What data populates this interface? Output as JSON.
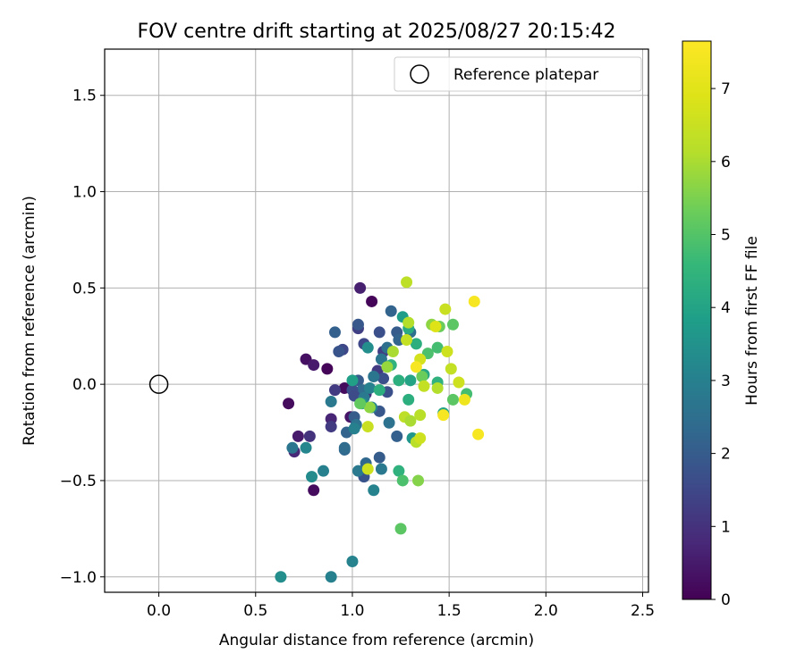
{
  "chart_data": {
    "type": "scatter",
    "title": "FOV centre drift starting at 2025/08/27 20:15:42",
    "xlabel": "Angular distance from reference (arcmin)",
    "ylabel": "Rotation from reference (arcmin)",
    "xlim": [
      -0.28,
      2.53
    ],
    "ylim": [
      -1.08,
      1.74
    ],
    "x_ticks": [
      0.0,
      0.5,
      1.0,
      1.5,
      2.0,
      2.5
    ],
    "x_tick_labels": [
      "0.0",
      "0.5",
      "1.0",
      "1.5",
      "2.0",
      "2.5"
    ],
    "y_ticks": [
      -1.0,
      -0.5,
      0.0,
      0.5,
      1.0,
      1.5
    ],
    "y_tick_labels": [
      "−1.0",
      "−0.5",
      "0.0",
      "0.5",
      "1.0",
      "1.5"
    ],
    "grid": true,
    "legend": {
      "placement": "top-right",
      "label": "Reference platepar"
    },
    "reference_point": {
      "x": 0.0,
      "y": 0.0
    },
    "colorbar": {
      "label": "Hours from first FF file",
      "colormap": "viridis",
      "range": [
        0,
        7.65
      ],
      "ticks": [
        0,
        1,
        2,
        3,
        4,
        5,
        6,
        7
      ],
      "tick_labels": [
        "0",
        "1",
        "2",
        "3",
        "4",
        "5",
        "6",
        "7"
      ]
    },
    "points": [
      {
        "x": 1.1,
        "y": 0.43,
        "t": 0.1
      },
      {
        "x": 1.04,
        "y": 0.5,
        "t": 0.6
      },
      {
        "x": 0.76,
        "y": 0.13,
        "t": 0.3
      },
      {
        "x": 0.8,
        "y": 0.1,
        "t": 0.5
      },
      {
        "x": 0.87,
        "y": 0.08,
        "t": 0.1
      },
      {
        "x": 0.67,
        "y": -0.1,
        "t": 0.2
      },
      {
        "x": 0.72,
        "y": -0.27,
        "t": 0.5
      },
      {
        "x": 0.8,
        "y": -0.55,
        "t": 0.2
      },
      {
        "x": 0.96,
        "y": -0.02,
        "t": 0.2
      },
      {
        "x": 0.7,
        "y": -0.35,
        "t": 0.8
      },
      {
        "x": 0.78,
        "y": -0.27,
        "t": 1.0
      },
      {
        "x": 0.89,
        "y": -0.18,
        "t": 0.7
      },
      {
        "x": 0.99,
        "y": -0.17,
        "t": 0.4
      },
      {
        "x": 0.89,
        "y": -0.22,
        "t": 1.2
      },
      {
        "x": 0.91,
        "y": -0.03,
        "t": 1.2
      },
      {
        "x": 0.95,
        "y": 0.18,
        "t": 1.5
      },
      {
        "x": 0.93,
        "y": 0.17,
        "t": 1.8
      },
      {
        "x": 0.91,
        "y": 0.27,
        "t": 2.1
      },
      {
        "x": 1.03,
        "y": 0.29,
        "t": 1.3
      },
      {
        "x": 1.03,
        "y": 0.31,
        "t": 1.9
      },
      {
        "x": 1.06,
        "y": 0.21,
        "t": 1.5
      },
      {
        "x": 1.07,
        "y": -0.05,
        "t": 1.0
      },
      {
        "x": 1.13,
        "y": 0.07,
        "t": 1.2
      },
      {
        "x": 1.16,
        "y": 0.17,
        "t": 1.3
      },
      {
        "x": 1.14,
        "y": 0.27,
        "t": 1.7
      },
      {
        "x": 1.16,
        "y": 0.03,
        "t": 1.7
      },
      {
        "x": 1.03,
        "y": 0.02,
        "t": 2.0
      },
      {
        "x": 1.05,
        "y": -0.03,
        "t": 2.4
      },
      {
        "x": 1.0,
        "y": -0.03,
        "t": 1.7
      },
      {
        "x": 1.01,
        "y": -0.06,
        "t": 1.6
      },
      {
        "x": 1.01,
        "y": -0.17,
        "t": 2.0
      },
      {
        "x": 0.97,
        "y": -0.25,
        "t": 2.2
      },
      {
        "x": 0.96,
        "y": -0.34,
        "t": 2.3
      },
      {
        "x": 1.06,
        "y": -0.48,
        "t": 1.8
      },
      {
        "x": 1.07,
        "y": -0.41,
        "t": 2.3
      },
      {
        "x": 1.14,
        "y": -0.38,
        "t": 2.0
      },
      {
        "x": 1.14,
        "y": -0.14,
        "t": 1.9
      },
      {
        "x": 1.18,
        "y": -0.04,
        "t": 1.7
      },
      {
        "x": 1.23,
        "y": -0.27,
        "t": 2.1
      },
      {
        "x": 1.19,
        "y": -0.2,
        "t": 2.6
      },
      {
        "x": 1.2,
        "y": 0.38,
        "t": 2.2
      },
      {
        "x": 1.23,
        "y": 0.27,
        "t": 2.0
      },
      {
        "x": 1.24,
        "y": 0.23,
        "t": 2.2
      },
      {
        "x": 1.3,
        "y": 0.27,
        "t": 2.5
      },
      {
        "x": 1.26,
        "y": 0.35,
        "t": 3.8
      },
      {
        "x": 1.18,
        "y": 0.19,
        "t": 2.5
      },
      {
        "x": 1.15,
        "y": 0.13,
        "t": 2.7
      },
      {
        "x": 1.08,
        "y": 0.19,
        "t": 3.4
      },
      {
        "x": 1.11,
        "y": 0.04,
        "t": 2.7
      },
      {
        "x": 1.09,
        "y": -0.02,
        "t": 3.0
      },
      {
        "x": 1.06,
        "y": -0.07,
        "t": 2.8
      },
      {
        "x": 1.1,
        "y": -0.12,
        "t": 3.1
      },
      {
        "x": 1.05,
        "y": -0.1,
        "t": 3.6
      },
      {
        "x": 1.02,
        "y": -0.21,
        "t": 2.6
      },
      {
        "x": 1.01,
        "y": -0.23,
        "t": 3.0
      },
      {
        "x": 0.96,
        "y": -0.33,
        "t": 2.4
      },
      {
        "x": 1.03,
        "y": -0.45,
        "t": 2.8
      },
      {
        "x": 1.11,
        "y": -0.55,
        "t": 3.1
      },
      {
        "x": 1.15,
        "y": -0.44,
        "t": 2.8
      },
      {
        "x": 0.89,
        "y": -0.09,
        "t": 2.8
      },
      {
        "x": 0.85,
        "y": -0.45,
        "t": 3.0
      },
      {
        "x": 0.79,
        "y": -0.48,
        "t": 3.3
      },
      {
        "x": 0.76,
        "y": -0.33,
        "t": 3.2
      },
      {
        "x": 0.69,
        "y": -0.33,
        "t": 2.7
      },
      {
        "x": 0.63,
        "y": -1.0,
        "t": 3.4
      },
      {
        "x": 0.89,
        "y": -1.0,
        "t": 3.0
      },
      {
        "x": 1.0,
        "y": -0.92,
        "t": 3.1
      },
      {
        "x": 1.0,
        "y": 0.02,
        "t": 3.9
      },
      {
        "x": 1.14,
        "y": -0.03,
        "t": 4.3
      },
      {
        "x": 1.2,
        "y": 0.1,
        "t": 4.4
      },
      {
        "x": 1.24,
        "y": 0.02,
        "t": 4.3
      },
      {
        "x": 1.3,
        "y": 0.02,
        "t": 4.0
      },
      {
        "x": 1.29,
        "y": -0.08,
        "t": 4.3
      },
      {
        "x": 1.31,
        "y": -0.28,
        "t": 3.6
      },
      {
        "x": 1.24,
        "y": -0.45,
        "t": 4.4
      },
      {
        "x": 1.26,
        "y": -0.5,
        "t": 4.9
      },
      {
        "x": 1.25,
        "y": -0.75,
        "t": 5.1
      },
      {
        "x": 1.29,
        "y": 0.29,
        "t": 4.2
      },
      {
        "x": 1.33,
        "y": 0.21,
        "t": 4.3
      },
      {
        "x": 1.37,
        "y": 0.05,
        "t": 4.1
      },
      {
        "x": 1.39,
        "y": 0.16,
        "t": 4.9
      },
      {
        "x": 1.44,
        "y": 0.19,
        "t": 4.8
      },
      {
        "x": 1.45,
        "y": 0.3,
        "t": 5.3
      },
      {
        "x": 1.52,
        "y": 0.31,
        "t": 5.1
      },
      {
        "x": 1.44,
        "y": 0.01,
        "t": 4.4
      },
      {
        "x": 1.47,
        "y": -0.15,
        "t": 4.0
      },
      {
        "x": 1.52,
        "y": -0.08,
        "t": 5.1
      },
      {
        "x": 1.59,
        "y": -0.05,
        "t": 4.8
      },
      {
        "x": 1.41,
        "y": 0.31,
        "t": 5.7
      },
      {
        "x": 1.36,
        "y": 0.04,
        "t": 5.3
      },
      {
        "x": 1.29,
        "y": 0.32,
        "t": 6.1
      },
      {
        "x": 1.28,
        "y": 0.53,
        "t": 6.3
      },
      {
        "x": 1.28,
        "y": 0.23,
        "t": 6.4
      },
      {
        "x": 1.21,
        "y": 0.17,
        "t": 6.0
      },
      {
        "x": 1.18,
        "y": 0.09,
        "t": 5.8
      },
      {
        "x": 1.37,
        "y": -0.01,
        "t": 6.4
      },
      {
        "x": 1.44,
        "y": -0.02,
        "t": 6.1
      },
      {
        "x": 1.51,
        "y": 0.08,
        "t": 6.4
      },
      {
        "x": 1.55,
        "y": 0.01,
        "t": 6.6
      },
      {
        "x": 1.49,
        "y": 0.17,
        "t": 6.6
      },
      {
        "x": 1.48,
        "y": 0.39,
        "t": 6.5
      },
      {
        "x": 1.43,
        "y": 0.3,
        "t": 6.9
      },
      {
        "x": 1.35,
        "y": 0.13,
        "t": 6.7
      },
      {
        "x": 1.33,
        "y": 0.09,
        "t": 7.5
      },
      {
        "x": 1.27,
        "y": -0.17,
        "t": 6.3
      },
      {
        "x": 1.3,
        "y": -0.19,
        "t": 6.0
      },
      {
        "x": 1.33,
        "y": -0.3,
        "t": 6.2
      },
      {
        "x": 1.35,
        "y": -0.28,
        "t": 6.6
      },
      {
        "x": 1.35,
        "y": -0.16,
        "t": 6.2
      },
      {
        "x": 1.47,
        "y": -0.16,
        "t": 7.5
      },
      {
        "x": 1.58,
        "y": -0.08,
        "t": 7.3
      },
      {
        "x": 1.63,
        "y": 0.43,
        "t": 7.5
      },
      {
        "x": 1.65,
        "y": -0.26,
        "t": 7.5
      },
      {
        "x": 1.34,
        "y": -0.5,
        "t": 5.6
      },
      {
        "x": 1.08,
        "y": -0.44,
        "t": 6.6
      },
      {
        "x": 1.08,
        "y": -0.22,
        "t": 6.5
      },
      {
        "x": 1.09,
        "y": -0.12,
        "t": 5.7
      },
      {
        "x": 1.04,
        "y": -0.1,
        "t": 5.2
      }
    ]
  }
}
